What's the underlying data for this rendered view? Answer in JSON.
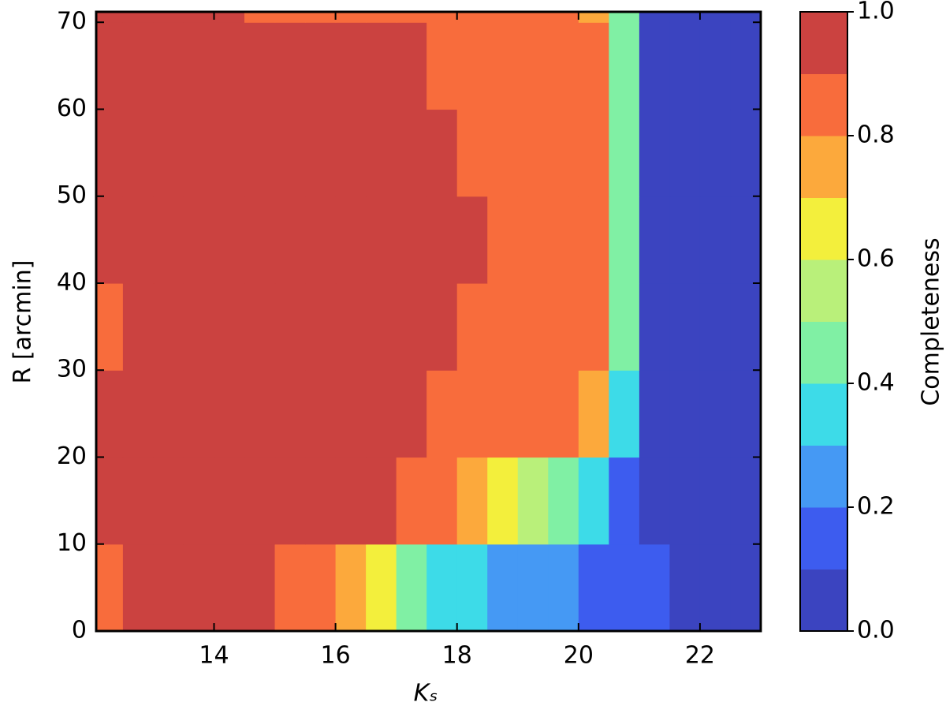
{
  "chart_data": {
    "type": "heatmap",
    "x_label": "Kₛ",
    "y_label": "R [arcmin]",
    "colorbar_label": "Completeness",
    "xlim": [
      12.06,
      23.0
    ],
    "ylim": [
      0,
      71.2
    ],
    "xticks": [
      14,
      16,
      18,
      20,
      22
    ],
    "yticks": [
      0,
      10,
      20,
      30,
      40,
      50,
      60,
      70
    ],
    "x": [
      12.25,
      12.75,
      13.25,
      13.75,
      14.25,
      14.75,
      15.25,
      15.75,
      16.25,
      16.75,
      17.25,
      17.75,
      18.25,
      18.75,
      19.25,
      19.75,
      20.25,
      20.75,
      21.25,
      21.75,
      22.25,
      22.75
    ],
    "y": [
      5,
      15,
      25,
      35,
      45,
      55,
      65,
      75
    ],
    "z": [
      [
        0.85,
        0.95,
        0.95,
        0.95,
        0.95,
        0.95,
        0.85,
        0.85,
        0.75,
        0.65,
        0.45,
        0.35,
        0.35,
        0.25,
        0.3,
        0.25,
        0.15,
        0.15,
        0.15,
        0.05,
        0.05,
        0.05
      ],
      [
        0.95,
        0.95,
        0.95,
        0.95,
        0.95,
        0.95,
        0.95,
        0.95,
        0.95,
        0.95,
        0.85,
        0.85,
        0.75,
        0.65,
        0.55,
        0.45,
        0.35,
        0.15,
        0.05,
        0.05,
        0.05,
        0.05
      ],
      [
        0.95,
        0.95,
        0.95,
        0.95,
        0.95,
        0.95,
        0.95,
        0.95,
        0.95,
        0.95,
        0.95,
        0.85,
        0.85,
        0.85,
        0.85,
        0.85,
        0.75,
        0.35,
        0.05,
        0.05,
        0.05,
        0.05
      ],
      [
        0.85,
        0.95,
        0.95,
        0.95,
        0.95,
        0.95,
        0.95,
        0.95,
        0.95,
        0.95,
        0.95,
        0.95,
        0.85,
        0.85,
        0.85,
        0.85,
        0.85,
        0.45,
        0.05,
        0.05,
        0.05,
        0.05
      ],
      [
        0.95,
        0.95,
        0.95,
        0.95,
        0.95,
        0.95,
        0.95,
        0.95,
        0.95,
        0.95,
        0.95,
        0.95,
        0.95,
        0.85,
        0.85,
        0.85,
        0.85,
        0.45,
        0.05,
        0.05,
        0.05,
        0.05
      ],
      [
        0.95,
        0.95,
        0.95,
        0.95,
        0.95,
        0.95,
        0.95,
        0.95,
        0.95,
        0.95,
        0.95,
        0.95,
        0.85,
        0.85,
        0.85,
        0.85,
        0.85,
        0.45,
        0.05,
        0.05,
        0.05,
        0.05
      ],
      [
        0.95,
        0.95,
        0.95,
        0.95,
        0.95,
        0.95,
        0.95,
        0.95,
        0.95,
        0.95,
        0.95,
        0.85,
        0.85,
        0.85,
        0.85,
        0.85,
        0.85,
        0.45,
        0.05,
        0.05,
        0.05,
        0.05
      ],
      [
        0.95,
        0.95,
        0.95,
        0.95,
        0.95,
        0.85,
        0.85,
        0.85,
        0.85,
        0.85,
        0.85,
        0.85,
        0.85,
        0.85,
        0.85,
        0.85,
        0.75,
        0.45,
        0.05,
        0.05,
        0.05,
        0.05
      ]
    ],
    "levels": [
      0,
      0.1,
      0.2,
      0.3,
      0.4,
      0.5,
      0.6,
      0.7,
      0.8,
      0.9,
      1.0
    ],
    "colors": [
      "#3b44c0",
      "#3d5cef",
      "#4599f4",
      "#3ddbe8",
      "#80f0a4",
      "#b9f07a",
      "#f3ef3c",
      "#fca93c",
      "#f86c3c",
      "#cb4240"
    ],
    "colorbar_ticks": [
      {
        "value": 0,
        "label": "0.0"
      },
      {
        "value": 0.2,
        "label": "0.2"
      },
      {
        "value": 0.4,
        "label": "0.4"
      },
      {
        "value": 0.6,
        "label": "0.6"
      },
      {
        "value": 0.8,
        "label": "0.8"
      },
      {
        "value": 1.0,
        "label": "1.0"
      }
    ]
  }
}
